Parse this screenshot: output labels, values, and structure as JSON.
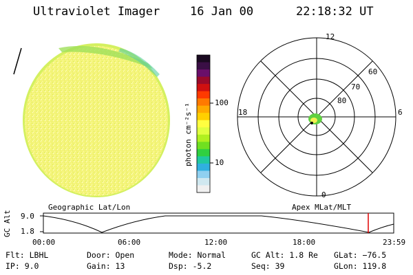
{
  "header": {
    "instrument": "Ultraviolet Imager",
    "date": "16 Jan 00",
    "time": "22:18:32 UT"
  },
  "colorbar": {
    "label": "photon cm⁻²s⁻¹",
    "ticks": [
      "100",
      "10"
    ],
    "colors": [
      "#1a0a20",
      "#3a0f45",
      "#6a0f6a",
      "#9a0a2a",
      "#d01010",
      "#ff3a00",
      "#ff7a00",
      "#ffaa00",
      "#ffd000",
      "#ffff40",
      "#e0ff40",
      "#b0f020",
      "#70e020",
      "#30d040",
      "#20c8a0",
      "#30b0e0",
      "#90d0f0",
      "#d0e8f0",
      "#f0f0f0"
    ]
  },
  "polar_plot": {
    "mlt_labels": {
      "top": "12",
      "right": "6",
      "bottom": "0",
      "left": "18"
    },
    "lat_labels": [
      "60",
      "70",
      "80"
    ]
  },
  "timeline": {
    "left_title": "Geographic Lat/Lon",
    "right_title": "Apex MLat/MLT",
    "axis_label": "GC Alt",
    "y_ticks": [
      "9.0",
      "1.8"
    ],
    "x_ticks": [
      "00:00",
      "06:00",
      "12:00",
      "18:00",
      "23:59"
    ],
    "marker_color": "#e00000"
  },
  "info": {
    "filter": "Flt: LBHL",
    "ip": "IP:  9.0",
    "door": "Door: Open",
    "gain": "Gain: 13",
    "mode": "Mode: Normal",
    "dsp": "Dsp:    -5.2",
    "gc_alt": "GC Alt: 1.8 Re",
    "seq": "Seq: 39",
    "glat": "GLat: −76.5",
    "glon": "GLon: 119.8"
  }
}
